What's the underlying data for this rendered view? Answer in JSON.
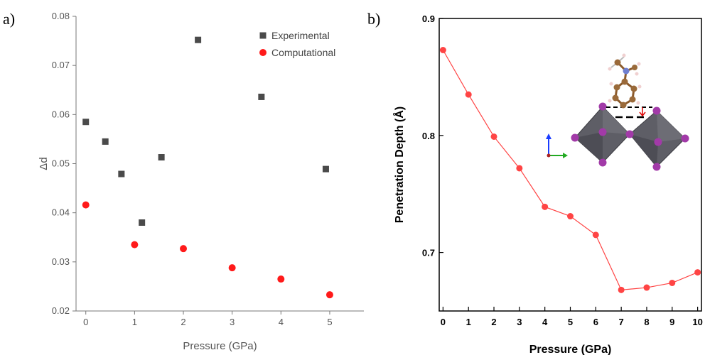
{
  "chart_data": [
    {
      "panel_label": "a)",
      "type": "scatter",
      "xlabel": "Pressure (GPa)",
      "ylabel": "Δd",
      "xlim": [
        -0.2,
        5.7
      ],
      "ylim": [
        0.02,
        0.08
      ],
      "xticks": [
        0,
        1,
        2,
        3,
        4,
        5
      ],
      "yticks": [
        0.02,
        0.03,
        0.04,
        0.05,
        0.06,
        0.07,
        0.08
      ],
      "ytick_labels": [
        "0.02",
        "0.03",
        "0.04",
        "0.05",
        "0.06",
        "0.07",
        "0.08"
      ],
      "legend_position": "top-right",
      "grid": false,
      "series": [
        {
          "name": "Experimental",
          "color": "#4a4a4a",
          "marker": "square",
          "x": [
            0,
            0.4,
            0.73,
            1.15,
            1.55,
            2.3,
            3.6,
            4.92
          ],
          "y": [
            0.0585,
            0.0545,
            0.0479,
            0.038,
            0.0513,
            0.0752,
            0.0636,
            0.0489
          ]
        },
        {
          "name": "Computational",
          "color": "#ff1a1a",
          "marker": "circle",
          "x": [
            0,
            1,
            2,
            3,
            4,
            5
          ],
          "y": [
            0.0416,
            0.0335,
            0.0327,
            0.0288,
            0.0265,
            0.0233
          ]
        }
      ]
    },
    {
      "panel_label": "b)",
      "type": "line",
      "xlabel": "Pressure (GPa)",
      "ylabel": "Penetration Depth (Å)",
      "xlim": [
        -0.15,
        10.15
      ],
      "ylim": [
        0.65,
        0.9
      ],
      "xticks": [
        0,
        1,
        2,
        3,
        4,
        5,
        6,
        7,
        8,
        9,
        10
      ],
      "yticks": [
        0.7,
        0.8,
        0.9
      ],
      "ytick_labels": [
        "0.7",
        "0.8",
        "0.9"
      ],
      "grid": false,
      "series": [
        {
          "color": "#ff4444",
          "marker": "circle",
          "x": [
            0,
            1,
            2,
            3,
            4,
            5,
            6,
            7,
            8,
            9,
            10
          ],
          "y": [
            0.873,
            0.835,
            0.799,
            0.772,
            0.739,
            0.731,
            0.715,
            0.668,
            0.67,
            0.674,
            0.683
          ]
        }
      ],
      "inset": "molecule-perovskite-structure"
    }
  ]
}
